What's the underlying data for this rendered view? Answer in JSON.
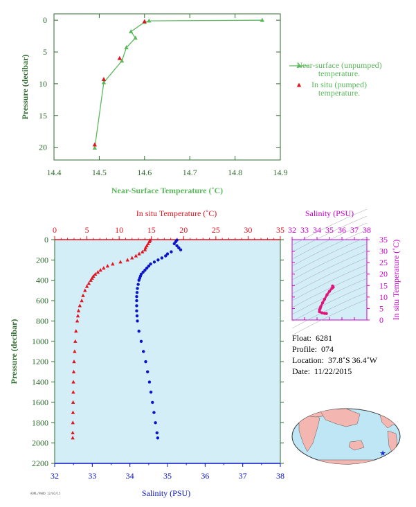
{
  "colors": {
    "near_surface": "#5cb85c",
    "in_situ_temp": "#e0141e",
    "salinity": "#0a14c8",
    "magenta": "#cc00cc",
    "axis_green": "#2e6b2e",
    "panel_bg": "#d4eef8"
  },
  "chart_data": [
    {
      "type": "line",
      "xlabel": "Near-Surface Temperature (˚C)",
      "ylabel": "Pressure (decibar)",
      "xlim": [
        14.4,
        14.9
      ],
      "ylim": [
        22,
        -1
      ],
      "xticks": [
        "14.4",
        "14.5",
        "14.6",
        "14.7",
        "14.8",
        "14.9"
      ],
      "yticks": [
        "0",
        "5",
        "10",
        "15",
        "20"
      ],
      "legend_position": "right",
      "series": [
        {
          "name": "Near-surface (unpumped) temperature.",
          "marker": "triangle",
          "points": [
            [
              14.49,
              20.1
            ],
            [
              14.51,
              9.8
            ],
            [
              14.55,
              6.4
            ],
            [
              14.56,
              4.3
            ],
            [
              14.58,
              2.8
            ],
            [
              14.57,
              1.8
            ],
            [
              14.6,
              0.3
            ],
            [
              14.61,
              0.1
            ],
            [
              14.86,
              0.0
            ]
          ]
        },
        {
          "name": "In situ (pumped) temperature.",
          "marker": "triangle",
          "points": [
            [
              14.49,
              19.6
            ],
            [
              14.51,
              9.3
            ],
            [
              14.545,
              6.0
            ],
            [
              14.6,
              0.2
            ]
          ]
        }
      ],
      "legend_labels": [
        [
          "Near-surface (unpumped)",
          "temperature."
        ],
        [
          "In situ (pumped)",
          "temperature."
        ]
      ]
    },
    {
      "type": "scatter",
      "ylabel": "Pressure (decibar)",
      "ylim": [
        2200,
        0
      ],
      "yticks": [
        "0",
        "200",
        "400",
        "600",
        "800",
        "1000",
        "1200",
        "1400",
        "1600",
        "1800",
        "2000",
        "2200"
      ],
      "top_axis": {
        "label": "In situ Temperature (˚C)",
        "range": [
          0,
          35
        ],
        "ticks": [
          "0",
          "5",
          "10",
          "15",
          "20",
          "25",
          "30",
          "35"
        ]
      },
      "bottom_axis": {
        "label": "Salinity (PSU)",
        "range": [
          32,
          38
        ],
        "ticks": [
          "32",
          "33",
          "34",
          "35",
          "36",
          "37",
          "38"
        ]
      },
      "series": [
        {
          "name": "In situ Temperature",
          "pressure": [
            5,
            20,
            40,
            60,
            80,
            100,
            120,
            140,
            160,
            180,
            200,
            220,
            240,
            260,
            280,
            300,
            320,
            340,
            360,
            380,
            400,
            430,
            460,
            500,
            550,
            600,
            650,
            700,
            750,
            800,
            900,
            1000,
            1100,
            1200,
            1300,
            1400,
            1500,
            1600,
            1700,
            1800,
            1900,
            1950
          ],
          "values": [
            14.8,
            14.7,
            14.5,
            14.3,
            14.1,
            14.0,
            13.6,
            13.1,
            12.6,
            12.0,
            11.3,
            10.2,
            9.0,
            8.2,
            7.6,
            7.1,
            6.7,
            6.3,
            6.0,
            5.8,
            5.6,
            5.3,
            5.0,
            4.7,
            4.4,
            4.2,
            3.9,
            3.7,
            3.6,
            3.5,
            3.3,
            3.2,
            3.1,
            3.0,
            2.95,
            2.9,
            2.88,
            2.86,
            2.84,
            2.82,
            2.8,
            2.8
          ]
        },
        {
          "name": "Salinity",
          "pressure": [
            5,
            20,
            40,
            60,
            80,
            100,
            120,
            140,
            160,
            180,
            200,
            220,
            240,
            260,
            280,
            300,
            320,
            340,
            360,
            380,
            400,
            440,
            480,
            520,
            560,
            600,
            650,
            700,
            750,
            800,
            900,
            1000,
            1100,
            1200,
            1300,
            1400,
            1500,
            1600,
            1700,
            1800,
            1900,
            1950
          ],
          "values": [
            35.25,
            35.22,
            35.18,
            35.25,
            35.3,
            35.35,
            35.1,
            35.0,
            34.95,
            34.85,
            34.75,
            34.65,
            34.55,
            34.5,
            34.45,
            34.4,
            34.35,
            34.3,
            34.28,
            34.26,
            34.24,
            34.22,
            34.2,
            34.19,
            34.18,
            34.18,
            34.18,
            34.18,
            34.19,
            34.2,
            34.24,
            34.3,
            34.36,
            34.42,
            34.47,
            34.52,
            34.56,
            34.6,
            34.64,
            34.68,
            34.72,
            34.74
          ]
        }
      ]
    },
    {
      "type": "scatter",
      "top_axis": {
        "label": "Salinity (PSU)",
        "range": [
          32,
          38
        ],
        "ticks": [
          "32",
          "33",
          "34",
          "35",
          "36",
          "37",
          "38"
        ]
      },
      "right_axis": {
        "label": "In situ Temperature (˚C)",
        "range": [
          0,
          35
        ],
        "ticks": [
          "0",
          "5",
          "10",
          "15",
          "20",
          "25",
          "30",
          "35"
        ]
      },
      "series": [
        {
          "name": "T-S",
          "points": [
            [
              34.75,
              2.8
            ],
            [
              34.6,
              2.9
            ],
            [
              34.4,
              3.1
            ],
            [
              34.2,
              3.6
            ],
            [
              34.2,
              4.4
            ],
            [
              34.25,
              5.0
            ],
            [
              34.3,
              5.8
            ],
            [
              34.45,
              7.5
            ],
            [
              34.6,
              9.0
            ],
            [
              34.8,
              11.0
            ],
            [
              35.0,
              12.5
            ],
            [
              35.2,
              13.8
            ],
            [
              35.3,
              14.3
            ],
            [
              35.25,
              14.8
            ]
          ]
        }
      ]
    }
  ],
  "info": {
    "float_label": "Float:",
    "float_value": "6281",
    "profile_label": "Profile:",
    "profile_value": "074",
    "location_label": "Location:",
    "location_value": "37.8˚S  36.4˚W",
    "date_label": "Date:",
    "date_value": "11/22/2015"
  },
  "stamp": "AOML/PHOD 12/03/15",
  "map": {
    "icon": "world-map-icon",
    "location_marker": "blue star"
  }
}
